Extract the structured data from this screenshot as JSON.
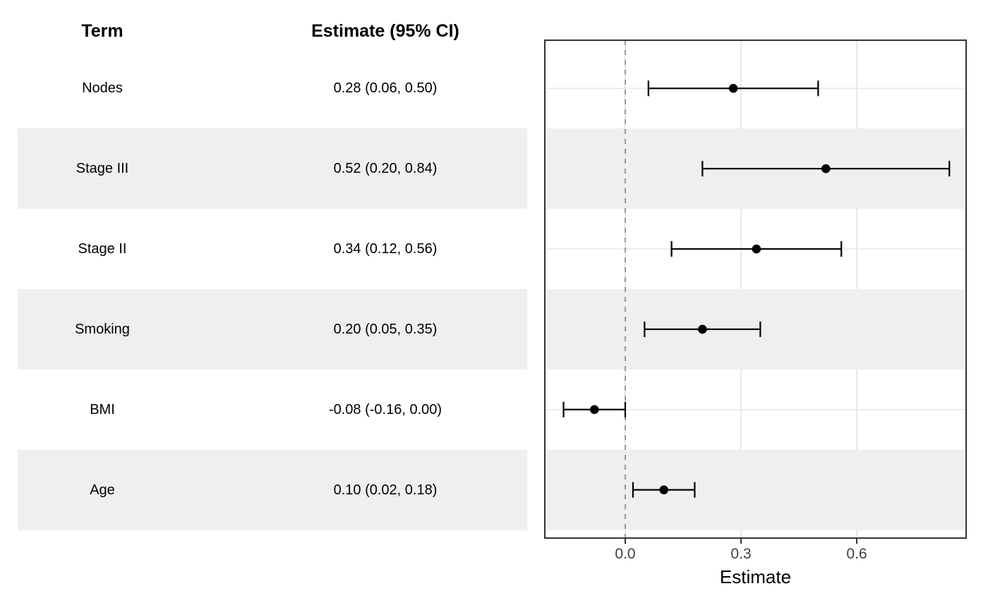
{
  "table": {
    "headers": {
      "term": "Term",
      "estimate": "Estimate (95% CI)"
    }
  },
  "chart_data": {
    "type": "scatter",
    "subtype": "forest-plot",
    "title": "",
    "xlabel": "Estimate",
    "ylabel": "",
    "xlim": [
      -0.2085,
      0.8835
    ],
    "xticks": [
      0.0,
      0.3,
      0.6
    ],
    "xtick_labels": [
      "0.0",
      "0.3",
      "0.6"
    ],
    "reference_line": 0.0,
    "grid": "major",
    "legend": "none",
    "categories": [
      "Nodes",
      "Stage III",
      "Stage II",
      "Smoking",
      "BMI",
      "Age"
    ],
    "points": [
      {
        "term": "Nodes",
        "estimate": 0.28,
        "ci_low": 0.06,
        "ci_high": 0.5,
        "label": "0.28 (0.06, 0.50)",
        "striped": false
      },
      {
        "term": "Stage III",
        "estimate": 0.52,
        "ci_low": 0.2,
        "ci_high": 0.84,
        "label": "0.52 (0.20, 0.84)",
        "striped": true
      },
      {
        "term": "Stage II",
        "estimate": 0.34,
        "ci_low": 0.12,
        "ci_high": 0.56,
        "label": "0.34 (0.12, 0.56)",
        "striped": false
      },
      {
        "term": "Smoking",
        "estimate": 0.2,
        "ci_low": 0.05,
        "ci_high": 0.35,
        "label": "0.20 (0.05, 0.35)",
        "striped": true
      },
      {
        "term": "BMI",
        "estimate": -0.08,
        "ci_low": -0.16,
        "ci_high": 0.0,
        "label": "-0.08 (-0.16, 0.00)",
        "striped": false
      },
      {
        "term": "Age",
        "estimate": 0.1,
        "ci_low": 0.02,
        "ci_high": 0.18,
        "label": "0.10 (0.02, 0.18)",
        "striped": true
      }
    ]
  },
  "colors": {
    "stripe": "#efefef",
    "grid": "#e8e8e8",
    "panel_border": "#333333",
    "reference_line": "#999999",
    "data": "#000000",
    "tick_text": "#404040",
    "text": "#000000"
  }
}
